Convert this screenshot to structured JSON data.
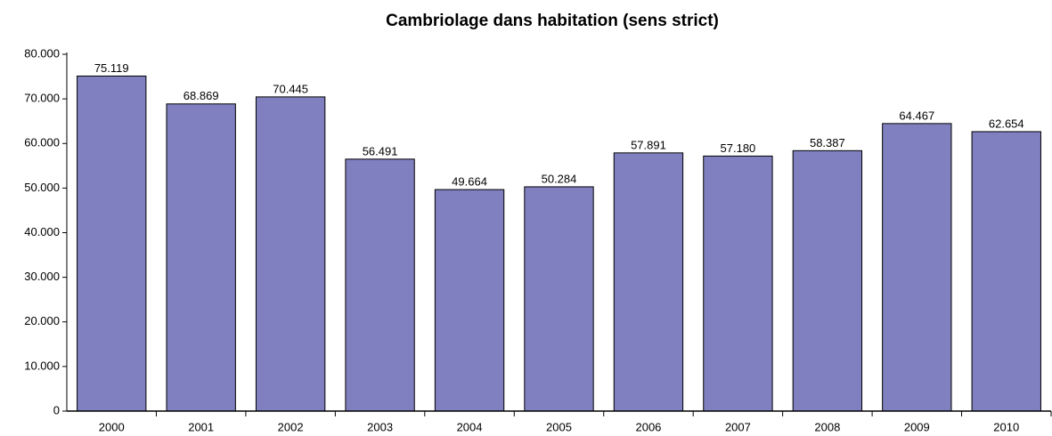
{
  "chart_data": {
    "type": "bar",
    "title": "Cambriolage dans habitation (sens strict)",
    "categories": [
      "2000",
      "2001",
      "2002",
      "2003",
      "2004",
      "2005",
      "2006",
      "2007",
      "2008",
      "2009",
      "2010"
    ],
    "values": [
      75119,
      68869,
      70445,
      56491,
      49664,
      50284,
      57891,
      57180,
      58387,
      64467,
      62654
    ],
    "value_labels": [
      "75.119",
      "68.869",
      "70.445",
      "56.491",
      "49.664",
      "50.284",
      "57.891",
      "57.180",
      "58.387",
      "64.467",
      "62.654"
    ],
    "color": "#8080c0",
    "ylim": [
      0,
      80000
    ],
    "yticks": [
      0,
      {
        "value": 10000,
        "label": "10.000"
      },
      {
        "value": 20000,
        "label": "20.000"
      },
      {
        "value": 30000,
        "label": "30.000"
      },
      {
        "value": 40000,
        "label": "40.000"
      },
      {
        "value": 50000,
        "label": "50.000"
      },
      {
        "value": 60000,
        "label": "60.000"
      },
      {
        "value": 70000,
        "label": "70.000"
      },
      {
        "value": 80000,
        "label": "80.000"
      }
    ],
    "grid": false
  }
}
